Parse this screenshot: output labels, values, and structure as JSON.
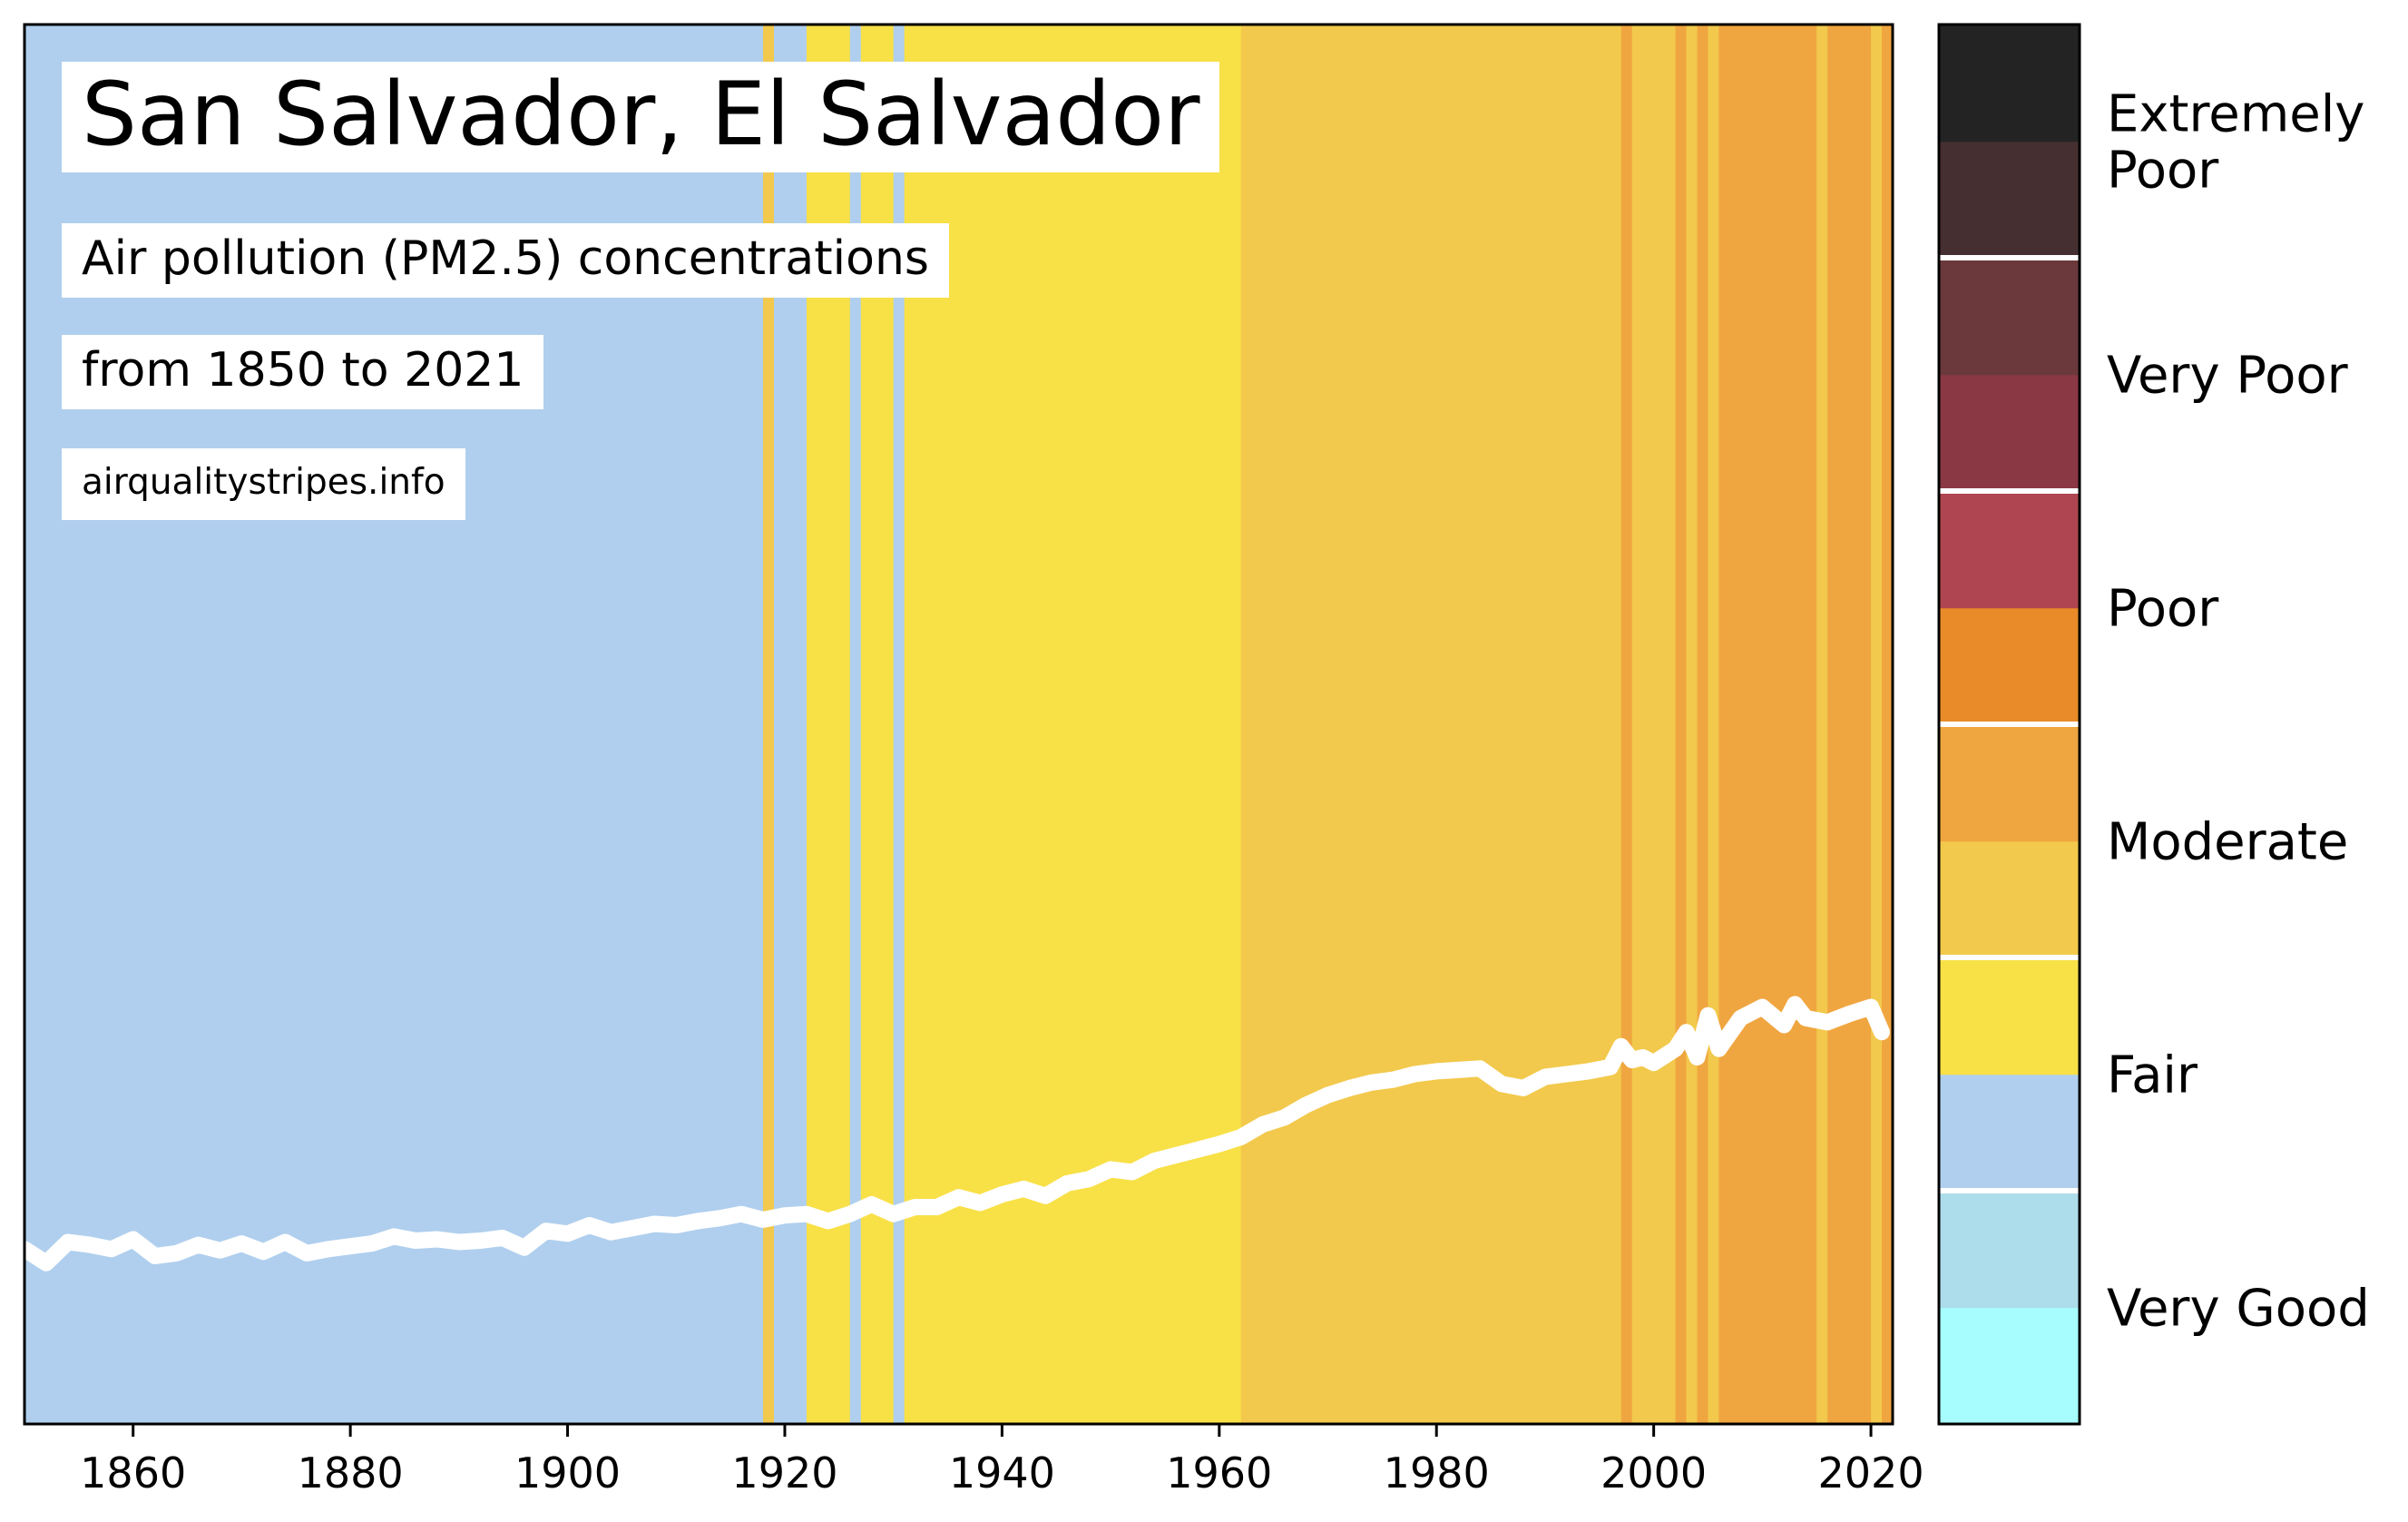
{
  "header": {
    "title": "San Salvador, El Salvador",
    "subtitle": "Air pollution (PM2.5) concentrations",
    "range_text": "from 1850 to 2021",
    "source": "airqualitystripes.info"
  },
  "chart_data": {
    "type": "heatmap",
    "xlim": [
      1850,
      2022
    ],
    "x_ticks": [
      "1860",
      "1880",
      "1900",
      "1920",
      "1940",
      "1960",
      "1980",
      "2000",
      "2020"
    ],
    "category_colors": {
      "fair": "#b0cfee",
      "moderate_low": "#f8e047",
      "moderate_high": "#f2c94c",
      "poor_low": "#f0a640"
    },
    "stripes": [
      {
        "from": 1850,
        "to": 1918,
        "category": "fair"
      },
      {
        "from": 1918,
        "to": 1919,
        "category": "moderate_high"
      },
      {
        "from": 1919,
        "to": 1922,
        "category": "fair"
      },
      {
        "from": 1922,
        "to": 1926,
        "category": "moderate_low"
      },
      {
        "from": 1926,
        "to": 1927,
        "category": "fair"
      },
      {
        "from": 1927,
        "to": 1930,
        "category": "moderate_low"
      },
      {
        "from": 1930,
        "to": 1931,
        "category": "fair"
      },
      {
        "from": 1931,
        "to": 1962,
        "category": "moderate_low"
      },
      {
        "from": 1962,
        "to": 1997,
        "category": "moderate_high"
      },
      {
        "from": 1997,
        "to": 1998,
        "category": "poor_low"
      },
      {
        "from": 1998,
        "to": 2002,
        "category": "moderate_high"
      },
      {
        "from": 2002,
        "to": 2003,
        "category": "poor_low"
      },
      {
        "from": 2003,
        "to": 2004,
        "category": "moderate_high"
      },
      {
        "from": 2004,
        "to": 2005,
        "category": "poor_low"
      },
      {
        "from": 2005,
        "to": 2006,
        "category": "moderate_high"
      },
      {
        "from": 2006,
        "to": 2015,
        "category": "poor_low"
      },
      {
        "from": 2015,
        "to": 2016,
        "category": "moderate_high"
      },
      {
        "from": 2016,
        "to": 2020,
        "category": "poor_low"
      },
      {
        "from": 2020,
        "to": 2021,
        "category": "moderate_high"
      },
      {
        "from": 2021,
        "to": 2022,
        "category": "poor_low"
      }
    ],
    "series": [
      {
        "x": [
          1850,
          1852,
          1854,
          1856,
          1858,
          1860,
          1862,
          1864,
          1866,
          1868,
          1870,
          1872,
          1874,
          1876,
          1878,
          1880,
          1882,
          1884,
          1886,
          1888,
          1890,
          1892,
          1894,
          1896,
          1898,
          1900,
          1902,
          1904,
          1906,
          1908,
          1910,
          1912,
          1914,
          1916,
          1918,
          1920,
          1922,
          1924,
          1926,
          1928,
          1930,
          1932,
          1934,
          1936,
          1938,
          1940,
          1942,
          1944,
          1946,
          1948,
          1950,
          1952,
          1954,
          1956,
          1958,
          1960,
          1962,
          1964,
          1966,
          1968,
          1970,
          1972,
          1974,
          1976,
          1978,
          1980,
          1982,
          1984,
          1986,
          1988,
          1990,
          1992,
          1994,
          1996,
          1997,
          1998,
          1999,
          2000,
          2002,
          2003,
          2004,
          2005,
          2006,
          2008,
          2010,
          2012,
          2013,
          2014,
          2016,
          2018,
          2020,
          2021
        ],
        "y": [
          0.125,
          0.115,
          0.13,
          0.128,
          0.125,
          0.132,
          0.12,
          0.122,
          0.128,
          0.124,
          0.129,
          0.123,
          0.13,
          0.122,
          0.125,
          0.127,
          0.129,
          0.134,
          0.131,
          0.132,
          0.13,
          0.131,
          0.133,
          0.126,
          0.138,
          0.136,
          0.142,
          0.137,
          0.14,
          0.143,
          0.142,
          0.145,
          0.147,
          0.15,
          0.146,
          0.149,
          0.15,
          0.145,
          0.15,
          0.157,
          0.15,
          0.155,
          0.155,
          0.162,
          0.158,
          0.164,
          0.168,
          0.163,
          0.172,
          0.175,
          0.182,
          0.18,
          0.188,
          0.192,
          0.196,
          0.2,
          0.205,
          0.214,
          0.219,
          0.228,
          0.235,
          0.24,
          0.244,
          0.246,
          0.25,
          0.252,
          0.253,
          0.254,
          0.243,
          0.24,
          0.248,
          0.25,
          0.252,
          0.255,
          0.27,
          0.26,
          0.262,
          0.258,
          0.268,
          0.28,
          0.262,
          0.292,
          0.268,
          0.29,
          0.298,
          0.285,
          0.3,
          0.29,
          0.287,
          0.293,
          0.298,
          0.28
        ]
      }
    ],
    "legend": {
      "labels": [
        "Very Good",
        "Fair",
        "Moderate",
        "Poor",
        "Very Poor",
        "Extremely Poor"
      ],
      "colors": [
        "#a7fdfd",
        "#addcea",
        "#b0cfee",
        "#f8e047",
        "#f2c94c",
        "#f0a640",
        "#e88b28",
        "#ae4550",
        "#8a3844",
        "#6b393b",
        "#452f30",
        "#232323"
      ]
    }
  }
}
